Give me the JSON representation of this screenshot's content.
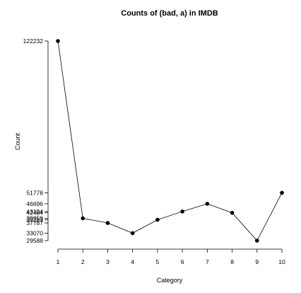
{
  "chart_data": {
    "type": "line",
    "title": "Counts of (bad, a) in IMDB",
    "xlabel": "Category",
    "ylabel": "Count",
    "x": [
      1,
      2,
      3,
      4,
      5,
      6,
      7,
      8,
      9,
      10
    ],
    "values": [
      122232,
      39959,
      37787,
      33070,
      39283,
      43104,
      46696,
      42484,
      29588,
      51778
    ],
    "x_ticks": [
      "1",
      "2",
      "3",
      "4",
      "5",
      "6",
      "7",
      "8",
      "9",
      "10"
    ],
    "y_ticks": [
      "29588",
      "33070",
      "37787",
      "39283",
      "39959",
      "42484",
      "43104",
      "46696",
      "51778",
      "122232"
    ],
    "xlim": [
      1,
      10
    ],
    "ylim": [
      29588,
      122232
    ],
    "grid": false,
    "legend": "none"
  }
}
